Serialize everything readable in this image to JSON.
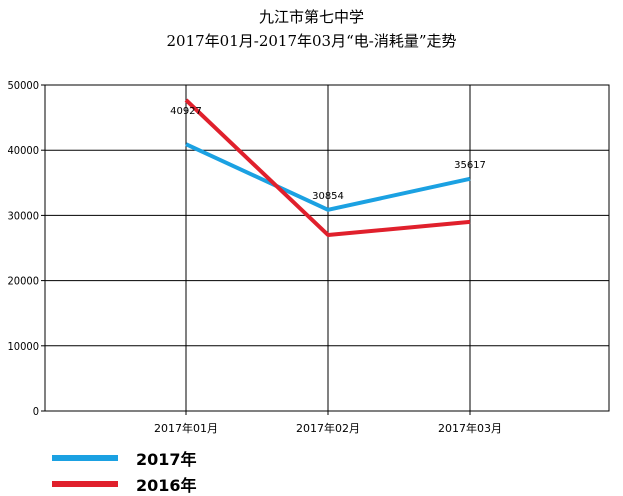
{
  "chart_data": {
    "type": "line",
    "title": "九江市第七中学",
    "subtitle": "2017年01月-2017年03月“电-消耗量”走势",
    "categories": [
      "2017年01月",
      "2017年02月",
      "2017年03月"
    ],
    "ylim": [
      0,
      50000
    ],
    "yticks": [
      0,
      10000,
      20000,
      30000,
      40000,
      50000
    ],
    "grid": true,
    "legend_position": "bottom-left",
    "series": [
      {
        "name": "2017年",
        "color": "#1BA1E2",
        "values": [
          40927,
          30854,
          35617
        ],
        "labels": [
          "40927",
          "30854",
          "35617"
        ]
      },
      {
        "name": "2016年",
        "color": "#E0202C",
        "values": [
          47700,
          27000,
          29000
        ]
      }
    ]
  }
}
